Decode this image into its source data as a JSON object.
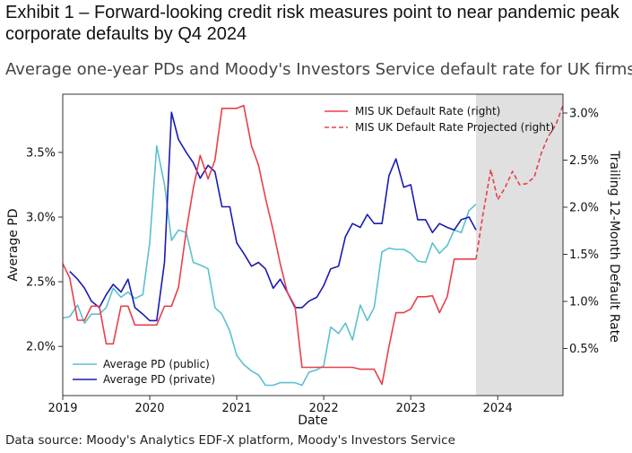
{
  "exhibit_title": "Exhibit 1 – Forward-looking credit risk measures point to near pandemic peak corporate defaults by Q4 2024",
  "subtitle": "Average one-year PDs and Moody's Investors Service default rate for UK firms",
  "source": "Data source: Moody's Analytics EDF-X platform, Moody's Investors Service",
  "chart_data": {
    "type": "line",
    "xlabel": "Date",
    "ylabel": "Average PD",
    "y2label": "Trailing 12-Month Default Rate",
    "xlim": [
      2019.0,
      2024.75
    ],
    "ylim": [
      1.62,
      3.95
    ],
    "y2lim": [
      0.0,
      3.2
    ],
    "xticks": [
      2019,
      2020,
      2021,
      2022,
      2023,
      2024
    ],
    "xtick_labels": [
      "2019",
      "2020",
      "2021",
      "2022",
      "2023",
      "2024"
    ],
    "yticks": [
      2.0,
      2.5,
      3.0,
      3.5
    ],
    "ytick_labels": [
      "2.0%",
      "2.5%",
      "3.0%",
      "3.5%"
    ],
    "y2ticks": [
      0.5,
      1.0,
      1.5,
      2.0,
      2.5,
      3.0
    ],
    "y2tick_labels": [
      "0.5%",
      "1.0%",
      "1.5%",
      "2.0%",
      "2.5%",
      "3.0%"
    ],
    "shaded_region": {
      "x0": 2023.75,
      "x1": 2024.75,
      "color": "#e0e0e0"
    },
    "legend_left_position": "lower-left",
    "legend_right_position": "top-center",
    "series": [
      {
        "name": "Average PD (public)",
        "axis": "left",
        "color": "#5bc0d0",
        "style": "solid",
        "x": [
          2019.0,
          2019.08,
          2019.17,
          2019.25,
          2019.33,
          2019.42,
          2019.5,
          2019.58,
          2019.67,
          2019.75,
          2019.83,
          2019.92,
          2020.0,
          2020.08,
          2020.17,
          2020.25,
          2020.33,
          2020.42,
          2020.5,
          2020.58,
          2020.67,
          2020.75,
          2020.83,
          2020.92,
          2021.0,
          2021.08,
          2021.17,
          2021.25,
          2021.33,
          2021.42,
          2021.5,
          2021.58,
          2021.67,
          2021.75,
          2021.83,
          2021.92,
          2022.0,
          2022.08,
          2022.17,
          2022.25,
          2022.33,
          2022.42,
          2022.5,
          2022.58,
          2022.67,
          2022.75,
          2022.83,
          2022.92,
          2023.0,
          2023.08,
          2023.17,
          2023.25,
          2023.33,
          2023.42,
          2023.5,
          2023.58,
          2023.67,
          2023.75
        ],
        "values": [
          2.22,
          2.23,
          2.32,
          2.18,
          2.25,
          2.25,
          2.3,
          2.45,
          2.38,
          2.42,
          2.37,
          2.4,
          2.8,
          3.55,
          3.25,
          2.82,
          2.9,
          2.88,
          2.65,
          2.63,
          2.6,
          2.3,
          2.25,
          2.12,
          1.93,
          1.86,
          1.81,
          1.78,
          1.7,
          1.7,
          1.72,
          1.72,
          1.72,
          1.7,
          1.8,
          1.82,
          1.85,
          2.15,
          2.1,
          2.18,
          2.05,
          2.32,
          2.2,
          2.3,
          2.73,
          2.76,
          2.75,
          2.75,
          2.72,
          2.66,
          2.65,
          2.8,
          2.72,
          2.78,
          2.9,
          2.88,
          3.05,
          3.1
        ]
      },
      {
        "name": "Average PD (private)",
        "axis": "left",
        "color": "#1a1ab4",
        "style": "solid",
        "x": [
          2019.08,
          2019.17,
          2019.25,
          2019.33,
          2019.42,
          2019.5,
          2019.58,
          2019.67,
          2019.75,
          2019.83,
          2019.92,
          2020.0,
          2020.08,
          2020.17,
          2020.25,
          2020.33,
          2020.42,
          2020.5,
          2020.58,
          2020.67,
          2020.75,
          2020.83,
          2020.92,
          2021.0,
          2021.08,
          2021.17,
          2021.25,
          2021.33,
          2021.42,
          2021.5,
          2021.58,
          2021.67,
          2021.75,
          2021.83,
          2021.92,
          2022.0,
          2022.08,
          2022.17,
          2022.25,
          2022.33,
          2022.42,
          2022.5,
          2022.58,
          2022.67,
          2022.75,
          2022.83,
          2022.92,
          2023.0,
          2023.08,
          2023.17,
          2023.25,
          2023.33,
          2023.42,
          2023.5,
          2023.58,
          2023.67,
          2023.75
        ],
        "values": [
          2.58,
          2.52,
          2.45,
          2.35,
          2.3,
          2.4,
          2.48,
          2.42,
          2.52,
          2.3,
          2.25,
          2.2,
          2.2,
          2.65,
          3.81,
          3.6,
          3.5,
          3.42,
          3.3,
          3.4,
          3.35,
          3.08,
          3.08,
          2.8,
          2.72,
          2.62,
          2.65,
          2.6,
          2.45,
          2.52,
          2.42,
          2.3,
          2.3,
          2.35,
          2.38,
          2.47,
          2.6,
          2.62,
          2.85,
          2.95,
          2.92,
          3.02,
          2.95,
          2.95,
          3.32,
          3.45,
          3.23,
          3.25,
          2.98,
          2.98,
          2.88,
          2.95,
          2.92,
          2.9,
          2.98,
          3.0,
          2.9
        ]
      },
      {
        "name": "MIS UK Default Rate (right)",
        "axis": "right",
        "color": "#e8404a",
        "style": "solid",
        "x": [
          2019.0,
          2019.08,
          2019.17,
          2019.25,
          2019.33,
          2019.42,
          2019.5,
          2019.58,
          2019.67,
          2019.75,
          2019.83,
          2019.92,
          2020.0,
          2020.08,
          2020.17,
          2020.25,
          2020.33,
          2020.42,
          2020.5,
          2020.58,
          2020.67,
          2020.75,
          2020.83,
          2020.92,
          2021.0,
          2021.08,
          2021.17,
          2021.25,
          2021.33,
          2021.42,
          2021.5,
          2021.58,
          2021.67,
          2021.75,
          2021.83,
          2021.92,
          2022.0,
          2022.08,
          2022.17,
          2022.25,
          2022.33,
          2022.42,
          2022.5,
          2022.58,
          2022.67,
          2022.75,
          2022.83,
          2022.92,
          2023.0,
          2023.08,
          2023.17,
          2023.25,
          2023.33,
          2023.42,
          2023.5,
          2023.58,
          2023.67,
          2023.75
        ],
        "values": [
          1.4,
          1.25,
          0.8,
          0.8,
          0.95,
          0.95,
          0.55,
          0.55,
          0.95,
          0.95,
          0.75,
          0.75,
          0.75,
          0.75,
          0.95,
          0.95,
          1.15,
          1.75,
          2.2,
          2.55,
          2.3,
          2.5,
          3.05,
          3.05,
          3.05,
          3.08,
          2.65,
          2.45,
          2.1,
          1.75,
          1.4,
          1.1,
          0.95,
          0.3,
          0.3,
          0.3,
          0.3,
          0.3,
          0.3,
          0.3,
          0.3,
          0.28,
          0.28,
          0.28,
          0.12,
          0.52,
          0.88,
          0.88,
          0.92,
          1.05,
          1.05,
          1.06,
          0.88,
          1.05,
          1.45,
          1.45,
          1.45,
          1.45
        ]
      },
      {
        "name": "MIS UK Default Rate Projected (right)",
        "axis": "right",
        "color": "#e8404a",
        "style": "dashed",
        "x": [
          2023.75,
          2023.83,
          2023.92,
          2024.0,
          2024.08,
          2024.17,
          2024.25,
          2024.33,
          2024.42,
          2024.5,
          2024.58,
          2024.67,
          2024.75
        ],
        "values": [
          1.45,
          1.92,
          2.4,
          2.08,
          2.2,
          2.38,
          2.24,
          2.25,
          2.32,
          2.57,
          2.75,
          2.88,
          3.08
        ]
      }
    ]
  }
}
